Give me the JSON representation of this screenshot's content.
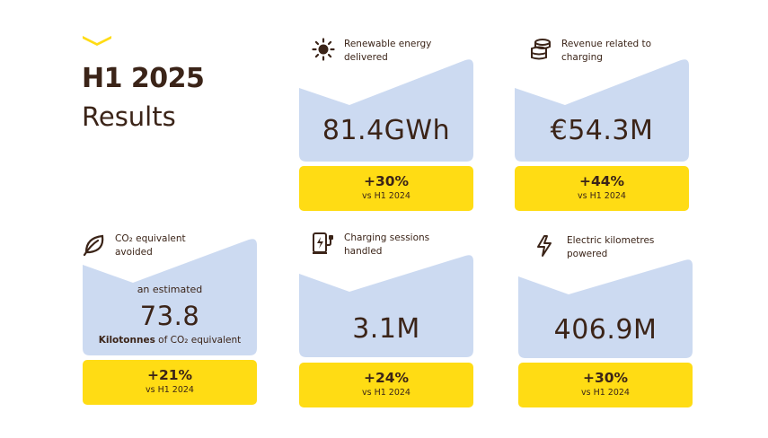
{
  "heading": {
    "title": "H1 2025",
    "subtitle": "Results"
  },
  "colors": {
    "card_blue": "#ccdaf1",
    "accent_yellow": "#ffdc14",
    "text_brown": "#3b2418"
  },
  "cards": [
    {
      "icon": "sun-icon",
      "label": "Renewable energy delivered",
      "value": "81.4GWh",
      "change": "+30%",
      "comparison": "vs H1 2024"
    },
    {
      "icon": "coin-stack-icon",
      "label": "Revenue related to charging",
      "value": "€54.3M",
      "change": "+44%",
      "comparison": "vs H1 2024"
    },
    {
      "icon": "leaf-icon",
      "label": "CO₂ equivalent avoided",
      "prefix": "an estimated",
      "value": "73.8",
      "unit_bold": "Kilotonnes",
      "unit_rest": " of CO₂ equivalent",
      "change": "+21%",
      "comparison": "vs H1 2024"
    },
    {
      "icon": "ev-charger-icon",
      "label": "Charging sessions handled",
      "value": "3.1M",
      "change": "+24%",
      "comparison": "vs H1 2024"
    },
    {
      "icon": "lightning-icon",
      "label": "Electric kilometres powered",
      "value": "406.9M",
      "change": "+30%",
      "comparison": "vs H1 2024"
    }
  ]
}
